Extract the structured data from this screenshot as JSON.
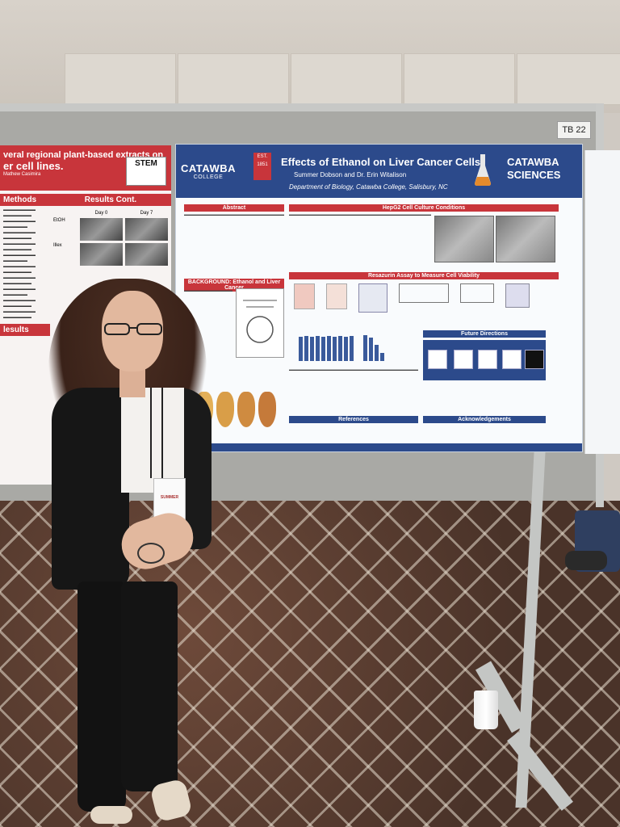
{
  "booth_tag": "TB 22",
  "left_poster": {
    "title_line1": "veral regional plant-based extracts on",
    "title_line2": "er cell lines.",
    "author_fragment": "Mathew Casimira",
    "stem_badge": "STEM",
    "section_methods": "Methods",
    "section_results_cont": "Results Cont.",
    "section_results": "lesults",
    "day0": "Day 0",
    "day7": "Day 7",
    "row1": "EtOH",
    "row2": "Illex"
  },
  "main_poster": {
    "logo_left": "CATAWBA",
    "logo_left_sub": "COLLEGE",
    "seal": "EST. 1851",
    "title": "Effects of Ethanol on Liver Cancer Cells",
    "authors": "Summer Dobson and Dr. Erin Witalison",
    "department": "Department of Biology, Catawba College, Salisbury, NC",
    "logo_right_line1": "CATAWBA",
    "logo_right_line2": "SCIENCES",
    "sections": {
      "abstract": "Abstract",
      "background": "BACKGROUND: Ethanol and Liver Cancer",
      "hepg2": "HepG2 Cell Culture Conditions",
      "resazurin": "Resazurin Assay to Measure Cell Viability",
      "future": "Future Directions",
      "references": "References",
      "acknowledgements": "Acknowledgements"
    }
  },
  "badge_name": "SUMMER"
}
